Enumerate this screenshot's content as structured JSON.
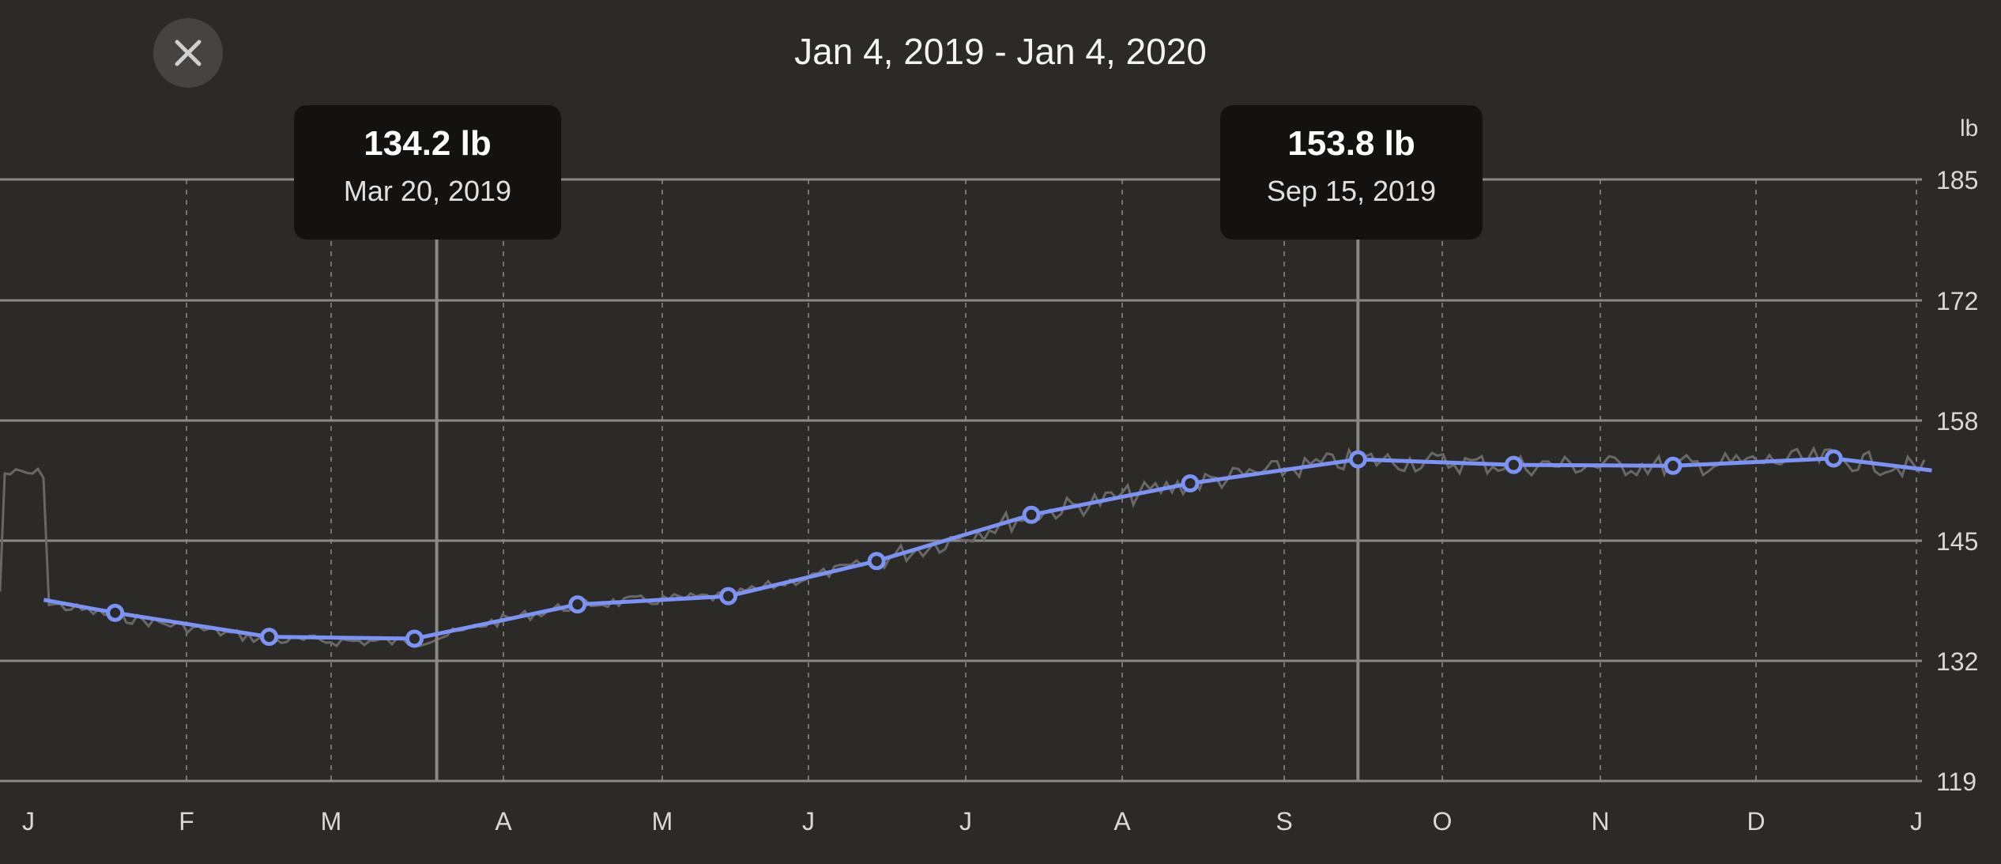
{
  "header": {
    "date_range": "Jan 4, 2019 - Jan 4, 2020",
    "close_icon": "close-icon"
  },
  "tooltips": [
    {
      "value": "134.2 lb",
      "date": "Mar 20, 2019"
    },
    {
      "value": "153.8 lb",
      "date": "Sep 15, 2019"
    }
  ],
  "chart_data": {
    "type": "line",
    "ylabel": "lb",
    "yticks": [
      185,
      172,
      158,
      145,
      132,
      119
    ],
    "ylim": [
      119,
      185
    ],
    "xticks": [
      "J",
      "F",
      "M",
      "A",
      "M",
      "J",
      "J",
      "A",
      "S",
      "O",
      "N",
      "D",
      "J"
    ],
    "grid": true,
    "colors": {
      "trend": "#7b93f5",
      "raw": "#6a6864",
      "background": "#2c2a27",
      "grid": "#8b8986"
    },
    "series": [
      {
        "points": [
          {
            "x": "2019-01-04",
            "y": 138.6
          },
          {
            "x": "2019-01-18",
            "y": 137.2
          },
          {
            "x": "2019-02-17",
            "y": 134.6
          },
          {
            "x": "2019-03-16",
            "y": 134.4
          },
          {
            "x": "2019-04-15",
            "y": 138.1
          },
          {
            "x": "2019-05-15",
            "y": 139.0
          },
          {
            "x": "2019-06-14",
            "y": 142.8
          },
          {
            "x": "2019-07-14",
            "y": 147.8
          },
          {
            "x": "2019-08-14",
            "y": 151.2
          },
          {
            "x": "2019-09-15",
            "y": 153.8
          },
          {
            "x": "2019-10-15",
            "y": 153.2
          },
          {
            "x": "2019-11-15",
            "y": 153.1
          },
          {
            "x": "2019-12-16",
            "y": 153.9
          },
          {
            "x": "2020-01-04",
            "y": 152.6
          }
        ]
      }
    ],
    "selected_points": [
      {
        "x": "2019-03-20",
        "y": 134.2
      },
      {
        "x": "2019-09-15",
        "y": 153.8
      }
    ]
  }
}
